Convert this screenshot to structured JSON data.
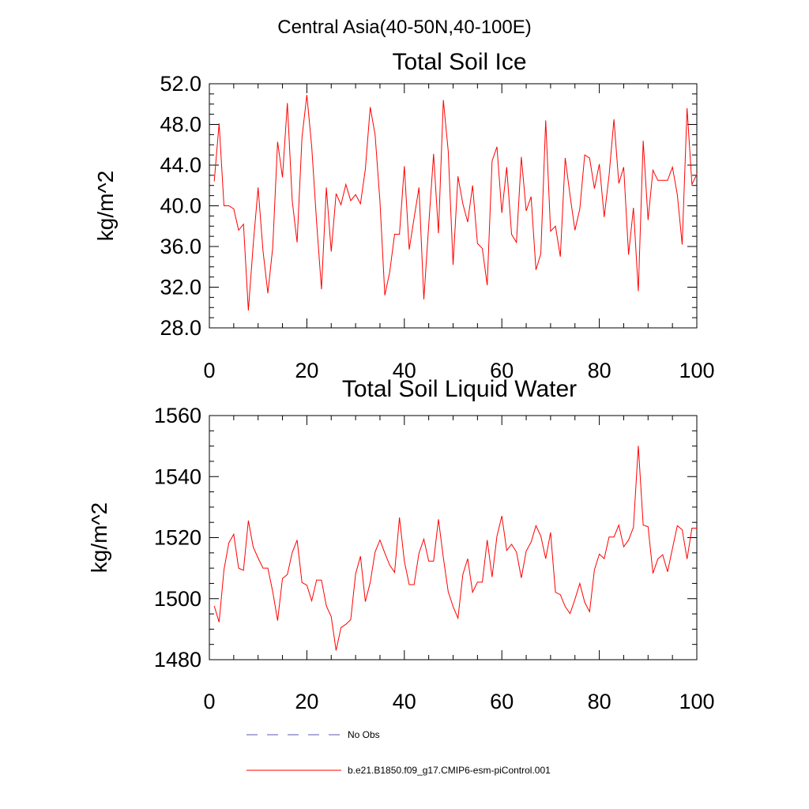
{
  "suptitle": "Central Asia(40-50N,40-100E)",
  "chart_data": [
    {
      "type": "line",
      "title": "Total Soil Ice",
      "xlabel": "",
      "ylabel": "kg/m^2",
      "xlim": [
        0,
        100
      ],
      "ylim": [
        28,
        52
      ],
      "xticks": [
        0,
        20,
        40,
        60,
        80,
        100
      ],
      "yticks": [
        28,
        32,
        36,
        40,
        44,
        48,
        52
      ],
      "ytick_labels": [
        "28.0",
        "32.0",
        "36.0",
        "40.0",
        "44.0",
        "48.0",
        "52.0"
      ],
      "grid": false,
      "series": [
        {
          "name": "b.e21.B1850.f09_g17.CMIP6-esm-piControl.001",
          "color": "#ff0000",
          "x": [
            1,
            2,
            3,
            4,
            5,
            6,
            7,
            8,
            9,
            10,
            11,
            12,
            13,
            14,
            15,
            16,
            17,
            18,
            19,
            20,
            21,
            22,
            23,
            24,
            25,
            26,
            27,
            28,
            29,
            30,
            31,
            32,
            33,
            34,
            35,
            36,
            37,
            38,
            39,
            40,
            41,
            42,
            43,
            44,
            45,
            46,
            47,
            48,
            49,
            50,
            51,
            52,
            53,
            54,
            55,
            56,
            57,
            58,
            59,
            60,
            61,
            62,
            63,
            64,
            65,
            66,
            67,
            68,
            69,
            70,
            71,
            72,
            73,
            74,
            75,
            76,
            77,
            78,
            79,
            80,
            81,
            82,
            83,
            84,
            85,
            86,
            87,
            88,
            89,
            90,
            91,
            92,
            93,
            94,
            95,
            96,
            97,
            98,
            99,
            100
          ],
          "values": [
            42.4,
            48.1,
            40.0,
            40.0,
            39.7,
            37.6,
            38.2,
            29.7,
            36.2,
            41.8,
            35.6,
            31.4,
            35.9,
            46.3,
            42.8,
            50.1,
            40.5,
            36.4,
            46.7,
            50.9,
            45.8,
            38.4,
            31.8,
            41.8,
            35.5,
            41.2,
            40.1,
            42.1,
            40.5,
            41.1,
            40.2,
            43.6,
            49.7,
            47.0,
            40.4,
            31.2,
            33.5,
            37.2,
            37.2,
            43.9,
            35.7,
            38.8,
            41.8,
            30.8,
            38.1,
            45.1,
            37.3,
            50.4,
            45.4,
            34.2,
            42.9,
            40.2,
            38.4,
            42.0,
            36.3,
            35.8,
            32.2,
            44.4,
            45.8,
            39.3,
            43.8,
            37.2,
            36.4,
            44.8,
            39.5,
            40.9,
            33.7,
            35.3,
            48.4,
            37.5,
            38.0,
            35.0,
            44.7,
            41.0,
            37.6,
            39.7,
            45.0,
            44.7,
            41.7,
            44.1,
            38.9,
            43.0,
            48.5,
            42.2,
            43.8,
            35.2,
            39.8,
            31.6,
            46.4,
            38.6,
            43.5,
            42.5,
            42.5,
            42.5,
            43.8,
            41.1,
            36.2,
            49.6,
            42.1,
            43.1
          ]
        }
      ]
    },
    {
      "type": "line",
      "title": "Total Soil Liquid Water",
      "xlabel": "",
      "ylabel": "kg/m^2",
      "xlim": [
        0,
        100
      ],
      "ylim": [
        1480,
        1560
      ],
      "xticks": [
        0,
        20,
        40,
        60,
        80,
        100
      ],
      "yticks": [
        1480,
        1500,
        1520,
        1540,
        1560
      ],
      "ytick_labels": [
        "1480",
        "1500",
        "1520",
        "1540",
        "1560"
      ],
      "grid": false,
      "series": [
        {
          "name": "b.e21.B1850.f09_g17.CMIP6-esm-piControl.001",
          "color": "#ff0000",
          "x": [
            1,
            2,
            3,
            4,
            5,
            6,
            7,
            8,
            9,
            10,
            11,
            12,
            13,
            14,
            15,
            16,
            17,
            18,
            19,
            20,
            21,
            22,
            23,
            24,
            25,
            26,
            27,
            28,
            29,
            30,
            31,
            32,
            33,
            34,
            35,
            36,
            37,
            38,
            39,
            40,
            41,
            42,
            43,
            44,
            45,
            46,
            47,
            48,
            49,
            50,
            51,
            52,
            53,
            54,
            55,
            56,
            57,
            58,
            59,
            60,
            61,
            62,
            63,
            64,
            65,
            66,
            67,
            68,
            69,
            70,
            71,
            72,
            73,
            74,
            75,
            76,
            77,
            78,
            79,
            80,
            81,
            82,
            83,
            84,
            85,
            86,
            87,
            88,
            89,
            90,
            91,
            92,
            93,
            94,
            95,
            96,
            97,
            98,
            99,
            100
          ],
          "values": [
            1497.6,
            1492.3,
            1509.5,
            1518.3,
            1521.1,
            1510.0,
            1509.3,
            1525.6,
            1516.9,
            1513.3,
            1510.0,
            1510.0,
            1502.3,
            1492.8,
            1506.6,
            1507.9,
            1515.1,
            1519.2,
            1505.3,
            1504.4,
            1499.3,
            1506.1,
            1506.1,
            1497.6,
            1494.1,
            1483.0,
            1490.5,
            1491.6,
            1493.1,
            1508.1,
            1513.9,
            1499.0,
            1505.3,
            1515.3,
            1519.2,
            1514.9,
            1511.0,
            1508.6,
            1526.6,
            1512.3,
            1504.6,
            1504.6,
            1514.9,
            1519.5,
            1512.3,
            1512.3,
            1526.0,
            1513.4,
            1502.3,
            1497.4,
            1493.6,
            1507.9,
            1513.1,
            1502.1,
            1505.4,
            1505.4,
            1519.2,
            1507.1,
            1520.5,
            1527.1,
            1515.8,
            1517.8,
            1515.3,
            1506.8,
            1515.6,
            1518.5,
            1523.9,
            1520.5,
            1513.1,
            1521.7,
            1502.1,
            1501.3,
            1497.4,
            1495.1,
            1499.8,
            1505.0,
            1498.8,
            1495.7,
            1509.5,
            1514.6,
            1513.1,
            1520.2,
            1520.2,
            1524.1,
            1517.0,
            1519.2,
            1523.4,
            1550.1,
            1524.1,
            1523.6,
            1508.3,
            1513.0,
            1514.4,
            1508.8,
            1516.4,
            1523.9,
            1522.6,
            1513.0,
            1523.1,
            1523.1
          ]
        }
      ]
    }
  ],
  "legend": {
    "placement": "bottom-left",
    "items": [
      {
        "label": "No Obs",
        "style": "dashed",
        "color": "#5a5ab4"
      },
      {
        "label": "b.e21.B1850.f09_g17.CMIP6-esm-piControl.001",
        "style": "solid",
        "color": "#ff0000"
      }
    ]
  }
}
